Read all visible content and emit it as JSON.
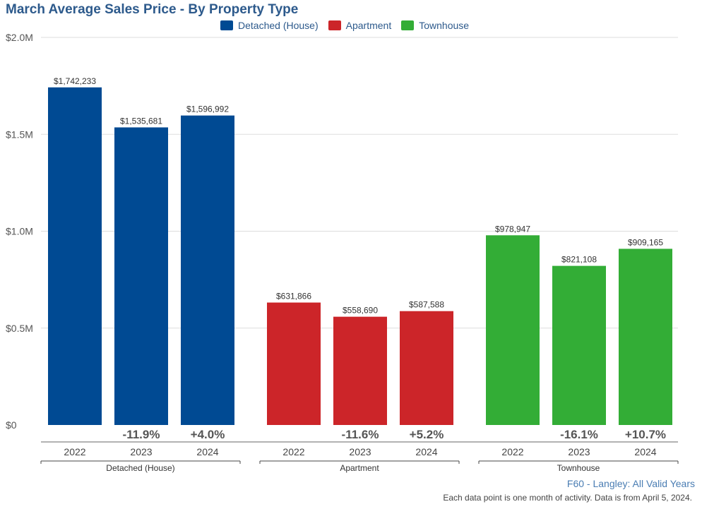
{
  "chart_data": {
    "type": "bar",
    "title": "March Average Sales Price - By Property Type",
    "groups": [
      "Detached (House)",
      "Apartment",
      "Townhouse"
    ],
    "years": [
      "2022",
      "2023",
      "2024"
    ],
    "ylim": [
      0,
      2000000
    ],
    "yticks": [
      {
        "value": 0,
        "label": "$0"
      },
      {
        "value": 500000,
        "label": "$0.5M"
      },
      {
        "value": 1000000,
        "label": "$1.0M"
      },
      {
        "value": 1500000,
        "label": "$1.5M"
      },
      {
        "value": 2000000,
        "label": "$2.0M"
      }
    ],
    "grid": true,
    "legend_position": "top-center",
    "series": [
      {
        "name": "Detached (House)",
        "color": "#004a93",
        "values": [
          1742233,
          1535681,
          1596992
        ],
        "labels": [
          "$1,742,233",
          "$1,535,681",
          "$1,596,992"
        ],
        "changes": [
          "",
          "-11.9%",
          "+4.0%"
        ]
      },
      {
        "name": "Apartment",
        "color": "#cc2529",
        "values": [
          631866,
          558690,
          587588
        ],
        "labels": [
          "$631,866",
          "$558,690",
          "$587,588"
        ],
        "changes": [
          "",
          "-11.6%",
          "+5.2%"
        ]
      },
      {
        "name": "Townhouse",
        "color": "#33ad36",
        "values": [
          978947,
          821108,
          909165
        ],
        "labels": [
          "$978,947",
          "$821,108",
          "$909,165"
        ],
        "changes": [
          "",
          "-16.1%",
          "+10.7%"
        ]
      }
    ]
  },
  "footer": {
    "region": "F60 - Langley: All Valid Years",
    "note": "Each data point is one month of activity. Data is from April 5, 2024."
  }
}
